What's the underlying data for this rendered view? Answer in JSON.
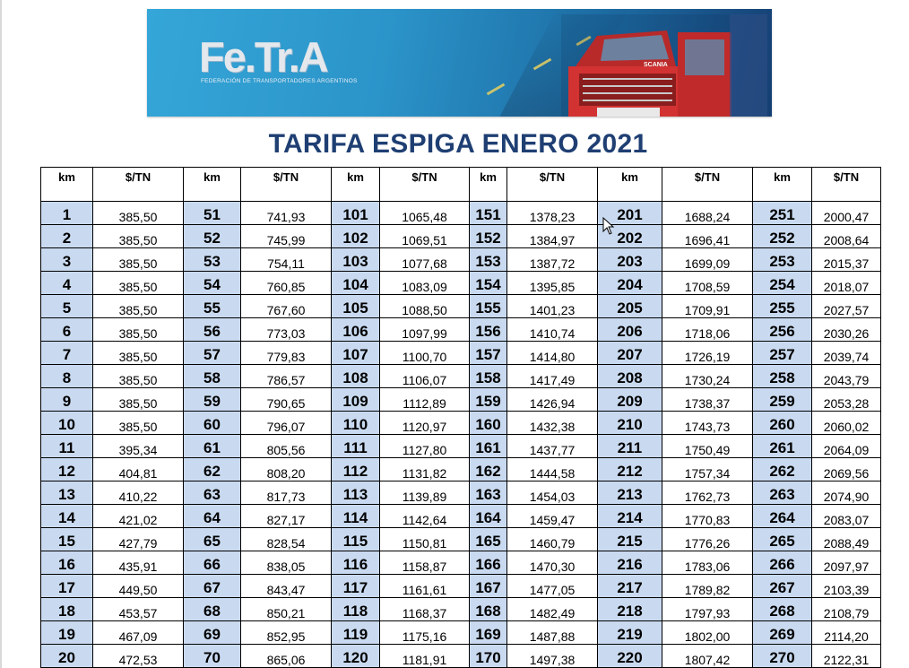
{
  "banner": {
    "logo": "Fe.Tr.A",
    "subtitle": "FEDERACIÓN DE TRANSPORTADORES ARGENTINOS"
  },
  "title": "TARIFA ESPIGA ENERO 2021",
  "table": {
    "headers": [
      "km",
      "$/TN",
      "km",
      "$/TN",
      "km",
      "$/TN",
      "km",
      "$/TN",
      "km",
      "$/TN",
      "km",
      "$/TN"
    ],
    "rows": [
      [
        "1",
        "385,50",
        "51",
        "741,93",
        "101",
        "1065,48",
        "151",
        "1378,23",
        "201",
        "1688,24",
        "251",
        "2000,47"
      ],
      [
        "2",
        "385,50",
        "52",
        "745,99",
        "102",
        "1069,51",
        "152",
        "1384,97",
        "202",
        "1696,41",
        "252",
        "2008,64"
      ],
      [
        "3",
        "385,50",
        "53",
        "754,11",
        "103",
        "1077,68",
        "153",
        "1387,72",
        "203",
        "1699,09",
        "253",
        "2015,37"
      ],
      [
        "4",
        "385,50",
        "54",
        "760,85",
        "104",
        "1083,09",
        "154",
        "1395,85",
        "204",
        "1708,59",
        "254",
        "2018,07"
      ],
      [
        "5",
        "385,50",
        "55",
        "767,60",
        "105",
        "1088,50",
        "155",
        "1401,23",
        "205",
        "1709,91",
        "255",
        "2027,57"
      ],
      [
        "6",
        "385,50",
        "56",
        "773,03",
        "106",
        "1097,99",
        "156",
        "1410,74",
        "206",
        "1718,06",
        "256",
        "2030,26"
      ],
      [
        "7",
        "385,50",
        "57",
        "779,83",
        "107",
        "1100,70",
        "157",
        "1414,80",
        "207",
        "1726,19",
        "257",
        "2039,74"
      ],
      [
        "8",
        "385,50",
        "58",
        "786,57",
        "108",
        "1106,07",
        "158",
        "1417,49",
        "208",
        "1730,24",
        "258",
        "2043,79"
      ],
      [
        "9",
        "385,50",
        "59",
        "790,65",
        "109",
        "1112,89",
        "159",
        "1426,94",
        "209",
        "1738,37",
        "259",
        "2053,28"
      ],
      [
        "10",
        "385,50",
        "60",
        "796,07",
        "110",
        "1120,97",
        "160",
        "1432,38",
        "210",
        "1743,73",
        "260",
        "2060,02"
      ],
      [
        "11",
        "395,34",
        "61",
        "805,56",
        "111",
        "1127,80",
        "161",
        "1437,77",
        "211",
        "1750,49",
        "261",
        "2064,09"
      ],
      [
        "12",
        "404,81",
        "62",
        "808,20",
        "112",
        "1131,82",
        "162",
        "1444,58",
        "212",
        "1757,34",
        "262",
        "2069,56"
      ],
      [
        "13",
        "410,22",
        "63",
        "817,73",
        "113",
        "1139,89",
        "163",
        "1454,03",
        "213",
        "1762,73",
        "263",
        "2074,90"
      ],
      [
        "14",
        "421,02",
        "64",
        "827,17",
        "114",
        "1142,64",
        "164",
        "1459,47",
        "214",
        "1770,83",
        "264",
        "2083,07"
      ],
      [
        "15",
        "427,79",
        "65",
        "828,54",
        "115",
        "1150,81",
        "165",
        "1460,79",
        "215",
        "1776,26",
        "265",
        "2088,49"
      ],
      [
        "16",
        "435,91",
        "66",
        "838,05",
        "116",
        "1158,87",
        "166",
        "1470,30",
        "216",
        "1783,06",
        "266",
        "2097,97"
      ],
      [
        "17",
        "449,50",
        "67",
        "843,47",
        "117",
        "1161,61",
        "167",
        "1477,05",
        "217",
        "1789,82",
        "267",
        "2103,39"
      ],
      [
        "18",
        "453,57",
        "68",
        "850,21",
        "118",
        "1168,37",
        "168",
        "1482,49",
        "218",
        "1797,93",
        "268",
        "2108,79"
      ],
      [
        "19",
        "467,09",
        "69",
        "852,95",
        "119",
        "1175,16",
        "169",
        "1487,88",
        "219",
        "1802,00",
        "269",
        "2114,20"
      ],
      [
        "20",
        "472,53",
        "70",
        "865,06",
        "120",
        "1181,91",
        "170",
        "1497,38",
        "220",
        "1807,42",
        "270",
        "2122,31"
      ]
    ]
  }
}
